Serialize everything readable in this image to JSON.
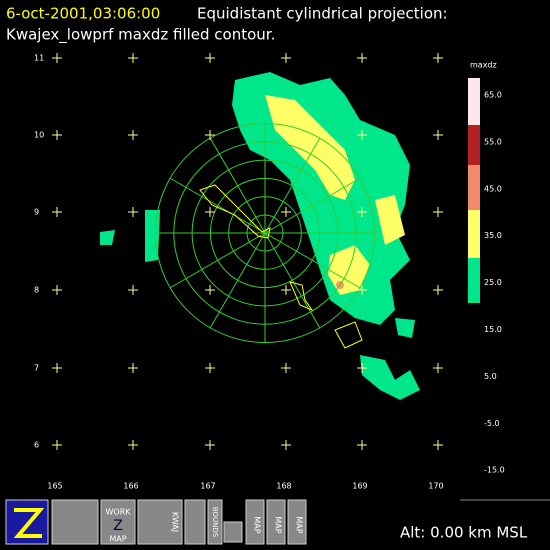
{
  "header": {
    "timestamp": "6-oct-2001,03:06:00",
    "projection": "Equidistant cylindrical projection:",
    "subtitle": "Kwajex_lowprf maxdz filled contour."
  },
  "map": {
    "lat_labels": [
      "11",
      "10",
      "9",
      "8",
      "7",
      "6"
    ],
    "lon_labels": [
      "165",
      "166",
      "167",
      "168",
      "169",
      "170"
    ]
  },
  "colorbar": {
    "title": "maxdz",
    "labels": [
      "65.0",
      "55.0",
      "45.0",
      "35.0",
      "25.0",
      "15.0",
      "5.0",
      "-5.0",
      "-15.0"
    ]
  },
  "toolbar": {
    "work_button": [
      "WORK",
      "Z",
      "MAP"
    ],
    "kwaj_button": "KWAJ",
    "bounds_button": "BOUNDS",
    "map_buttons": [
      "MAP",
      "MAP",
      "MAP"
    ]
  },
  "status": {
    "altitude": "Alt: 0.00 km MSL"
  }
}
